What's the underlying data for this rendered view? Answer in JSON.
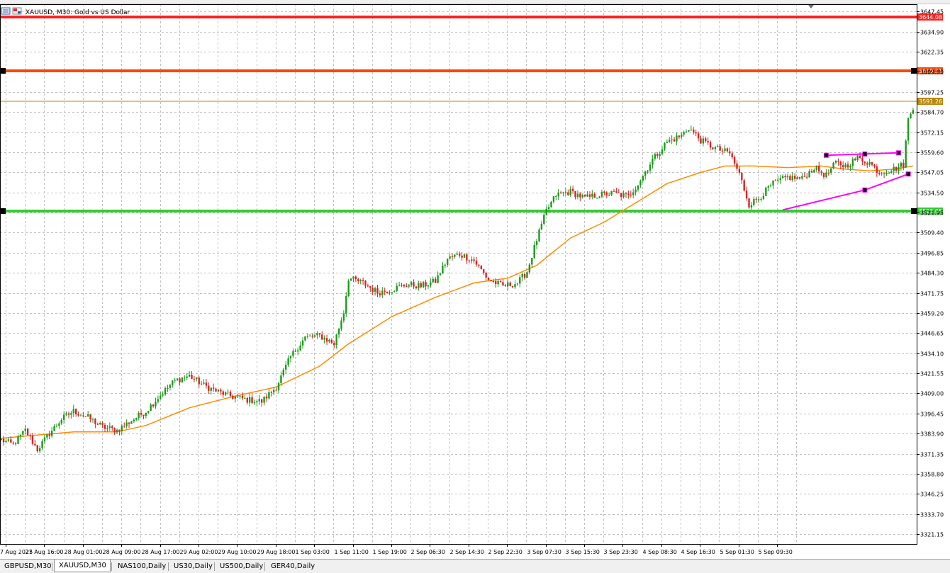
{
  "window": {
    "title": "XAUUSD, M30:  Gold vs US Dollar"
  },
  "tabs": [
    {
      "label": "GBPUSD,M30",
      "active": false
    },
    {
      "label": "XAUUSD,M30",
      "active": true
    },
    {
      "label": "NAS100,Daily",
      "active": false
    },
    {
      "label": "US30,Daily",
      "active": false
    },
    {
      "label": "US500,Daily",
      "active": false
    },
    {
      "label": "GER40,Daily",
      "active": false
    }
  ],
  "chart_data": {
    "type": "candlestick",
    "symbol": "XAUUSD",
    "timeframe": "M30",
    "title": "XAUUSD, M30:  Gold vs US Dollar",
    "ylim": [
      3315,
      3652
    ],
    "y_ticks": [
      "3647.45",
      "3634.90",
      "3622.35",
      "3609.80",
      "3597.25",
      "3584.70",
      "3572.15",
      "3559.60",
      "3547.05",
      "3534.50",
      "3521.95",
      "3509.40",
      "3496.85",
      "3484.30",
      "3471.75",
      "3459.20",
      "3446.65",
      "3434.10",
      "3421.55",
      "3409.00",
      "3396.45",
      "3383.90",
      "3371.35",
      "3358.80",
      "3346.25",
      "3333.70",
      "3321.15"
    ],
    "x_ticks": [
      "7 Aug 2025",
      "27 Aug 16:00",
      "28 Aug 01:00",
      "28 Aug 09:00",
      "28 Aug 17:00",
      "29 Aug 02:00",
      "29 Aug 10:00",
      "29 Aug 18:00",
      "1 Sep 03:00",
      "1 Sep 11:00",
      "1 Sep 19:00",
      "2 Sep 06:30",
      "2 Sep 14:30",
      "2 Sep 22:30",
      "3 Sep 07:30",
      "3 Sep 15:30",
      "3 Sep 23:30",
      "4 Sep 08:30",
      "4 Sep 16:30",
      "5 Sep 01:30",
      "5 Sep 09:30"
    ],
    "price_path": [
      [
        0,
        3380
      ],
      [
        5,
        3377
      ],
      [
        10,
        3386
      ],
      [
        15,
        3374
      ],
      [
        20,
        3384
      ],
      [
        25,
        3393
      ],
      [
        30,
        3398
      ],
      [
        36,
        3394
      ],
      [
        42,
        3388
      ],
      [
        48,
        3386
      ],
      [
        54,
        3392
      ],
      [
        60,
        3398
      ],
      [
        66,
        3408
      ],
      [
        72,
        3417
      ],
      [
        78,
        3420
      ],
      [
        84,
        3414
      ],
      [
        90,
        3410
      ],
      [
        96,
        3407
      ],
      [
        102,
        3405
      ],
      [
        108,
        3404
      ],
      [
        114,
        3413
      ],
      [
        120,
        3432
      ],
      [
        126,
        3444
      ],
      [
        132,
        3445
      ],
      [
        138,
        3440
      ],
      [
        142,
        3460
      ],
      [
        144,
        3481
      ],
      [
        150,
        3478
      ],
      [
        156,
        3472
      ],
      [
        162,
        3474
      ],
      [
        168,
        3477
      ],
      [
        174,
        3476
      ],
      [
        180,
        3479
      ],
      [
        185,
        3493
      ],
      [
        190,
        3496
      ],
      [
        196,
        3492
      ],
      [
        202,
        3480
      ],
      [
        208,
        3476
      ],
      [
        214,
        3478
      ],
      [
        218,
        3485
      ],
      [
        222,
        3505
      ],
      [
        226,
        3523
      ],
      [
        230,
        3533
      ],
      [
        236,
        3535
      ],
      [
        242,
        3531
      ],
      [
        248,
        3533
      ],
      [
        254,
        3534
      ],
      [
        260,
        3532
      ],
      [
        264,
        3540
      ],
      [
        270,
        3555
      ],
      [
        276,
        3566
      ],
      [
        282,
        3570
      ],
      [
        285,
        3575
      ],
      [
        290,
        3567
      ],
      [
        296,
        3562
      ],
      [
        302,
        3559
      ],
      [
        306,
        3546
      ],
      [
        310,
        3527
      ],
      [
        314,
        3531
      ],
      [
        320,
        3540
      ],
      [
        326,
        3544
      ],
      [
        332,
        3543
      ],
      [
        337,
        3550
      ],
      [
        342,
        3545
      ],
      [
        346,
        3553
      ],
      [
        350,
        3551
      ],
      [
        355,
        3556
      ],
      [
        360,
        3553
      ],
      [
        364,
        3547
      ],
      [
        370,
        3549
      ],
      [
        374,
        3552
      ],
      [
        376,
        3580
      ],
      [
        378,
        3588
      ]
    ],
    "moving_average": {
      "name": "",
      "color": "#ff8c00",
      "points": [
        [
          0,
          3381
        ],
        [
          30,
          3385
        ],
        [
          48,
          3385
        ],
        [
          60,
          3389
        ],
        [
          78,
          3400
        ],
        [
          96,
          3407
        ],
        [
          114,
          3413
        ],
        [
          132,
          3426
        ],
        [
          144,
          3440
        ],
        [
          162,
          3457
        ],
        [
          180,
          3469
        ],
        [
          196,
          3478
        ],
        [
          210,
          3481
        ],
        [
          222,
          3489
        ],
        [
          236,
          3506
        ],
        [
          250,
          3516
        ],
        [
          262,
          3527
        ],
        [
          276,
          3540
        ],
        [
          290,
          3547
        ],
        [
          300,
          3551
        ],
        [
          312,
          3551
        ],
        [
          326,
          3550
        ],
        [
          340,
          3551
        ],
        [
          350,
          3549
        ],
        [
          360,
          3548
        ],
        [
          370,
          3549
        ],
        [
          378,
          3551
        ]
      ]
    },
    "horizontal_levels": [
      {
        "label": "3644.08",
        "price": 3644.08,
        "color": "#ff2020"
      },
      {
        "label": "3610.31",
        "price": 3610.31,
        "color": "#ff4500"
      },
      {
        "label": "3591.26",
        "price": 3591.26,
        "color": "#b8860b"
      },
      {
        "label": "3523.05",
        "price": 3523.05,
        "color": "#32cd32"
      }
    ],
    "trendlines": [
      {
        "color": "#ff00ff",
        "points": [
          [
            342,
            3557.7
          ],
          [
            358,
            3558.5
          ],
          [
            372,
            3559.2
          ]
        ]
      },
      {
        "color": "#ff00ff",
        "points": [
          [
            324,
            3523.6
          ],
          [
            358,
            3536.0
          ],
          [
            376,
            3546.0
          ]
        ]
      }
    ],
    "grid": true,
    "legend": "none"
  }
}
